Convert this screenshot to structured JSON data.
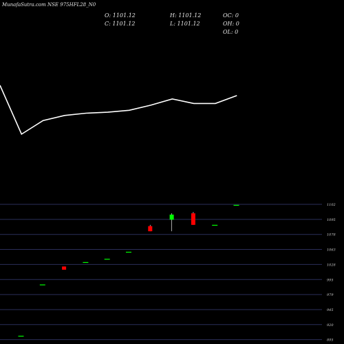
{
  "title": "MunafaSutra.com NSE 975HFL28_N0",
  "ohlc": {
    "o": "O: 1101.12",
    "h": "H: 1101.12",
    "c": "C: 1101.12",
    "l": "L: 1101.12",
    "oc": "OC: 0",
    "oh": "OH: 0",
    "ol": "OL: 0"
  },
  "colors": {
    "up": "#00ff00",
    "down": "#ff0000",
    "flat": "#00ff00",
    "line": "#ffffff",
    "grid": "#2b2f5a"
  },
  "chart_data": [
    {
      "type": "line",
      "values": [
        1101.0,
        1058.0,
        1070.0,
        1074.5,
        1076.5,
        1077.3,
        1079.0,
        1083.5,
        1089.0,
        1085.0,
        1085.0,
        1092.0
      ]
    },
    {
      "type": "candlestick",
      "yticks": [
        "1102",
        "1095",
        "1078",
        "1063",
        "1028",
        "995",
        "979",
        "945",
        "920",
        "895"
      ],
      "candles": [
        {
          "o": 897,
          "h": 897,
          "l": 897,
          "c": 897
        },
        {
          "o": 977,
          "h": 977,
          "l": 977,
          "c": 977
        },
        {
          "o": 1005,
          "h": 1005,
          "l": 1000,
          "c": 1000
        },
        {
          "o": 1012,
          "h": 1012,
          "l": 1012,
          "c": 1012
        },
        {
          "o": 1017,
          "h": 1017,
          "l": 1017,
          "c": 1017
        },
        {
          "o": 1028,
          "h": 1028,
          "l": 1028,
          "c": 1028
        },
        {
          "o": 1068,
          "h": 1070,
          "l": 1060,
          "c": 1060
        },
        {
          "o": 1078,
          "h": 1088,
          "l": 1060,
          "c": 1086
        },
        {
          "o": 1088,
          "h": 1090,
          "l": 1070,
          "c": 1070
        },
        {
          "o": 1070,
          "h": 1070,
          "l": 1070,
          "c": 1070
        },
        {
          "o": 1101.12,
          "h": 1101.12,
          "l": 1101.12,
          "c": 1101.12
        }
      ]
    }
  ]
}
